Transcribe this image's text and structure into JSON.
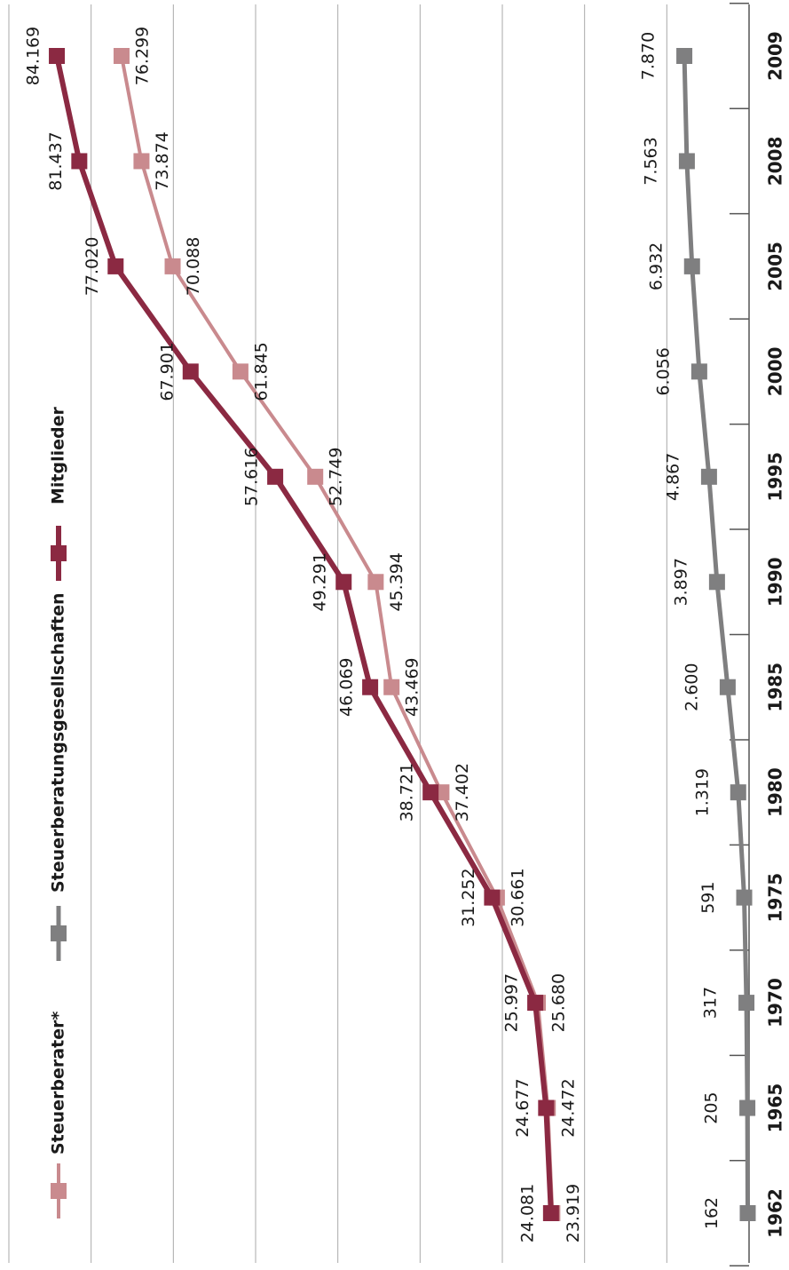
{
  "chart_data": {
    "type": "line",
    "categories": [
      "1962",
      "1965",
      "1970",
      "1975",
      "1980",
      "1985",
      "1990",
      "1995",
      "2000",
      "2005",
      "2008",
      "2009"
    ],
    "series": [
      {
        "name": "Steuerberater*",
        "color": "#c98a8e",
        "values": [
          23919,
          24472,
          25680,
          30661,
          37402,
          43469,
          45394,
          52749,
          61845,
          70088,
          73874,
          76299
        ],
        "value_labels": [
          "23.919",
          "24.472",
          "25.680",
          "30.661",
          "37.402",
          "43.469",
          "45.394",
          "52.749",
          "61.845",
          "70.088",
          "73.874",
          "76.299"
        ]
      },
      {
        "name": "Steuerberatungsgesellschaften",
        "color": "#7f7f80",
        "values": [
          162,
          205,
          317,
          591,
          1319,
          2600,
          3897,
          4867,
          6056,
          6932,
          7563,
          7870
        ],
        "value_labels": [
          "162",
          "205",
          "317",
          "591",
          "1.319",
          "2.600",
          "3.897",
          "4.867",
          "6.056",
          "6.932",
          "7.563",
          "7.870"
        ]
      },
      {
        "name": "Mitglieder",
        "color": "#8b2942",
        "values": [
          24081,
          24677,
          25997,
          31252,
          38721,
          46069,
          49291,
          57616,
          67901,
          77020,
          81437,
          84169
        ],
        "value_labels": [
          "24.081",
          "24.677",
          "25.997",
          "31.252",
          "38.721",
          "46.069",
          "49.291",
          "57.616",
          "67.901",
          "77.020",
          "81.437",
          "84.169"
        ]
      }
    ],
    "ylim": [
      0,
      90000
    ],
    "yticks": [
      0,
      10000,
      20000,
      30000,
      40000,
      50000,
      60000,
      70000,
      80000,
      90000
    ],
    "grid": true
  }
}
